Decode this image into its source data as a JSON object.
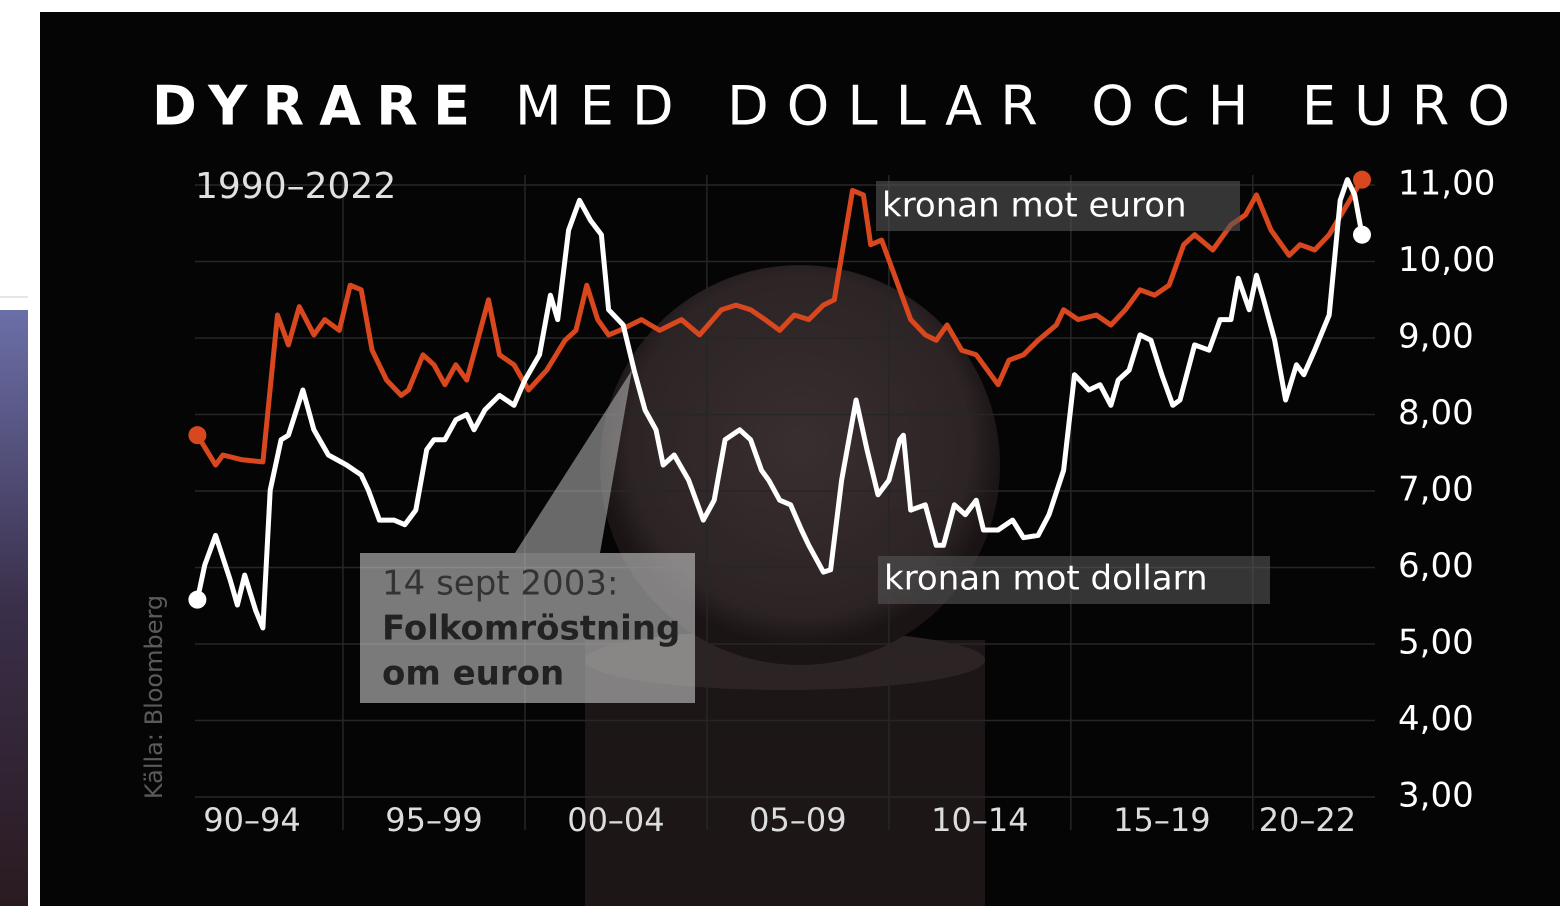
{
  "chart_data": {
    "type": "line",
    "title_bold": "DYRARE",
    "title": "MED DOLLAR OCH EURO",
    "subtitle": "1990–2022",
    "source": "Källa: Bloomberg",
    "annotation": {
      "date": "14 sept 2003:",
      "lines": [
        "Folkomröstning",
        "om euron"
      ]
    },
    "xlim": [
      1990,
      2023
    ],
    "xticks": [
      {
        "value": 1992.5,
        "label": "90–94"
      },
      {
        "value": 1997.5,
        "label": "95–99"
      },
      {
        "value": 2002.5,
        "label": "00–04"
      },
      {
        "value": 2007.5,
        "label": "05–09"
      },
      {
        "value": 2012.5,
        "label": "10–14"
      },
      {
        "value": 2017.5,
        "label": "15–19"
      },
      {
        "value": 2021.5,
        "label": "20–22"
      }
    ],
    "xgrid": [
      1995,
      2000,
      2005,
      2010,
      2015,
      2020
    ],
    "ylim": [
      3,
      11
    ],
    "yticks": [
      {
        "value": 3,
        "label": "3,00"
      },
      {
        "value": 4,
        "label": "4,00"
      },
      {
        "value": 5,
        "label": "5,00"
      },
      {
        "value": 6,
        "label": "6,00"
      },
      {
        "value": 7,
        "label": "7,00"
      },
      {
        "value": 8,
        "label": "8,00"
      },
      {
        "value": 9,
        "label": "9,00"
      },
      {
        "value": 10,
        "label": "10,00"
      },
      {
        "value": 11,
        "label": "11,00"
      }
    ],
    "grid": true,
    "series": [
      {
        "name": "kronan mot euron",
        "color": "#d9471f",
        "x": [
          1991.0,
          1991.5,
          1991.7,
          1992.2,
          1992.8,
          1993.2,
          1993.5,
          1993.8,
          1994.2,
          1994.5,
          1994.9,
          1995.2,
          1995.5,
          1995.8,
          1996.2,
          1996.6,
          1996.8,
          1997.2,
          1997.5,
          1997.8,
          1998.1,
          1998.4,
          1998.7,
          1999.0,
          1999.3,
          1999.7,
          2000.1,
          2000.6,
          2001.1,
          2001.4,
          2001.7,
          2002.0,
          2002.3,
          2002.6,
          2003.2,
          2003.7,
          2004.3,
          2004.8,
          2005.4,
          2005.8,
          2006.2,
          2006.6,
          2007.0,
          2007.4,
          2007.8,
          2008.2,
          2008.5,
          2009.0,
          2009.3,
          2009.5,
          2009.8,
          2010.2,
          2010.6,
          2011.0,
          2011.3,
          2011.6,
          2012.0,
          2012.4,
          2012.8,
          2013.0,
          2013.3,
          2013.7,
          2014.1,
          2014.6,
          2014.8,
          2015.2,
          2015.7,
          2016.1,
          2016.5,
          2016.9,
          2017.3,
          2017.7,
          2018.1,
          2018.4,
          2018.9,
          2019.4,
          2019.8,
          2020.1,
          2020.5,
          2021.0,
          2021.3,
          2021.7,
          2022.1,
          2022.5,
          2023.0
        ],
        "values": [
          7.73,
          7.34,
          7.47,
          7.41,
          7.38,
          9.3,
          8.91,
          9.41,
          9.04,
          9.24,
          9.1,
          9.69,
          9.63,
          8.84,
          8.45,
          8.25,
          8.32,
          8.78,
          8.65,
          8.39,
          8.65,
          8.45,
          8.97,
          9.5,
          8.78,
          8.65,
          8.32,
          8.58,
          8.97,
          9.1,
          9.69,
          9.24,
          9.04,
          9.1,
          9.24,
          9.1,
          9.24,
          9.04,
          9.37,
          9.43,
          9.37,
          9.24,
          9.1,
          9.3,
          9.24,
          9.43,
          9.5,
          10.93,
          10.87,
          10.22,
          10.28,
          9.76,
          9.24,
          9.04,
          8.97,
          9.17,
          8.84,
          8.78,
          8.52,
          8.39,
          8.71,
          8.78,
          8.97,
          9.17,
          9.37,
          9.24,
          9.3,
          9.17,
          9.37,
          9.63,
          9.56,
          9.69,
          10.22,
          10.35,
          10.15,
          10.48,
          10.61,
          10.87,
          10.41,
          10.08,
          10.22,
          10.15,
          10.35,
          10.67,
          11.07
        ]
      },
      {
        "name": "kronan mot dollarn",
        "color": "#ffffff",
        "x": [
          1991.0,
          1991.2,
          1991.5,
          1991.9,
          1992.1,
          1992.3,
          1992.6,
          1992.8,
          1993.0,
          1993.3,
          1993.5,
          1993.9,
          1994.2,
          1994.6,
          1995.1,
          1995.5,
          1995.7,
          1996.0,
          1996.4,
          1996.7,
          1997.0,
          1997.3,
          1997.5,
          1997.8,
          1998.1,
          1998.4,
          1998.6,
          1998.9,
          1999.3,
          1999.7,
          2000.0,
          2000.4,
          2000.7,
          2000.9,
          2001.2,
          2001.5,
          2001.8,
          2002.1,
          2002.3,
          2002.7,
          2003.0,
          2003.3,
          2003.6,
          2003.8,
          2004.1,
          2004.5,
          2004.9,
          2005.2,
          2005.5,
          2005.9,
          2006.2,
          2006.5,
          2006.7,
          2007.0,
          2007.3,
          2007.6,
          2007.8,
          2008.2,
          2008.4,
          2008.7,
          2009.1,
          2009.4,
          2009.7,
          2010.0,
          2010.3,
          2010.4,
          2010.6,
          2011.0,
          2011.3,
          2011.5,
          2011.8,
          2012.1,
          2012.4,
          2012.6,
          2013.0,
          2013.4,
          2013.7,
          2014.1,
          2014.4,
          2014.8,
          2015.1,
          2015.5,
          2015.8,
          2016.1,
          2016.3,
          2016.6,
          2016.9,
          2017.2,
          2017.5,
          2017.8,
          2018.0,
          2018.4,
          2018.8,
          2019.1,
          2019.4,
          2019.6,
          2019.9,
          2020.1,
          2020.3,
          2020.6,
          2020.9,
          2021.2,
          2021.4,
          2021.7,
          2022.1,
          2022.4,
          2022.6,
          2022.8,
          2023.0
        ],
        "values": [
          5.58,
          6.03,
          6.42,
          5.84,
          5.51,
          5.9,
          5.44,
          5.21,
          7.01,
          7.67,
          7.73,
          8.32,
          7.8,
          7.47,
          7.34,
          7.21,
          7.01,
          6.62,
          6.62,
          6.56,
          6.75,
          7.54,
          7.67,
          7.67,
          7.93,
          8.0,
          7.8,
          8.06,
          8.25,
          8.12,
          8.45,
          8.78,
          9.56,
          9.24,
          10.41,
          10.8,
          10.54,
          10.35,
          9.37,
          9.17,
          8.58,
          8.06,
          7.8,
          7.34,
          7.47,
          7.14,
          6.62,
          6.88,
          7.67,
          7.8,
          7.67,
          7.27,
          7.14,
          6.88,
          6.82,
          6.49,
          6.29,
          5.94,
          5.97,
          7.14,
          8.19,
          7.54,
          6.95,
          7.14,
          7.67,
          7.73,
          6.75,
          6.82,
          6.29,
          6.29,
          6.82,
          6.69,
          6.88,
          6.49,
          6.49,
          6.62,
          6.39,
          6.42,
          6.69,
          7.27,
          8.52,
          8.32,
          8.39,
          8.12,
          8.45,
          8.58,
          9.04,
          8.97,
          8.52,
          8.12,
          8.19,
          8.91,
          8.84,
          9.24,
          9.24,
          9.78,
          9.37,
          9.82,
          9.5,
          8.97,
          8.19,
          8.65,
          8.52,
          8.84,
          9.3,
          10.8,
          11.07,
          10.87,
          10.35
        ]
      }
    ]
  }
}
